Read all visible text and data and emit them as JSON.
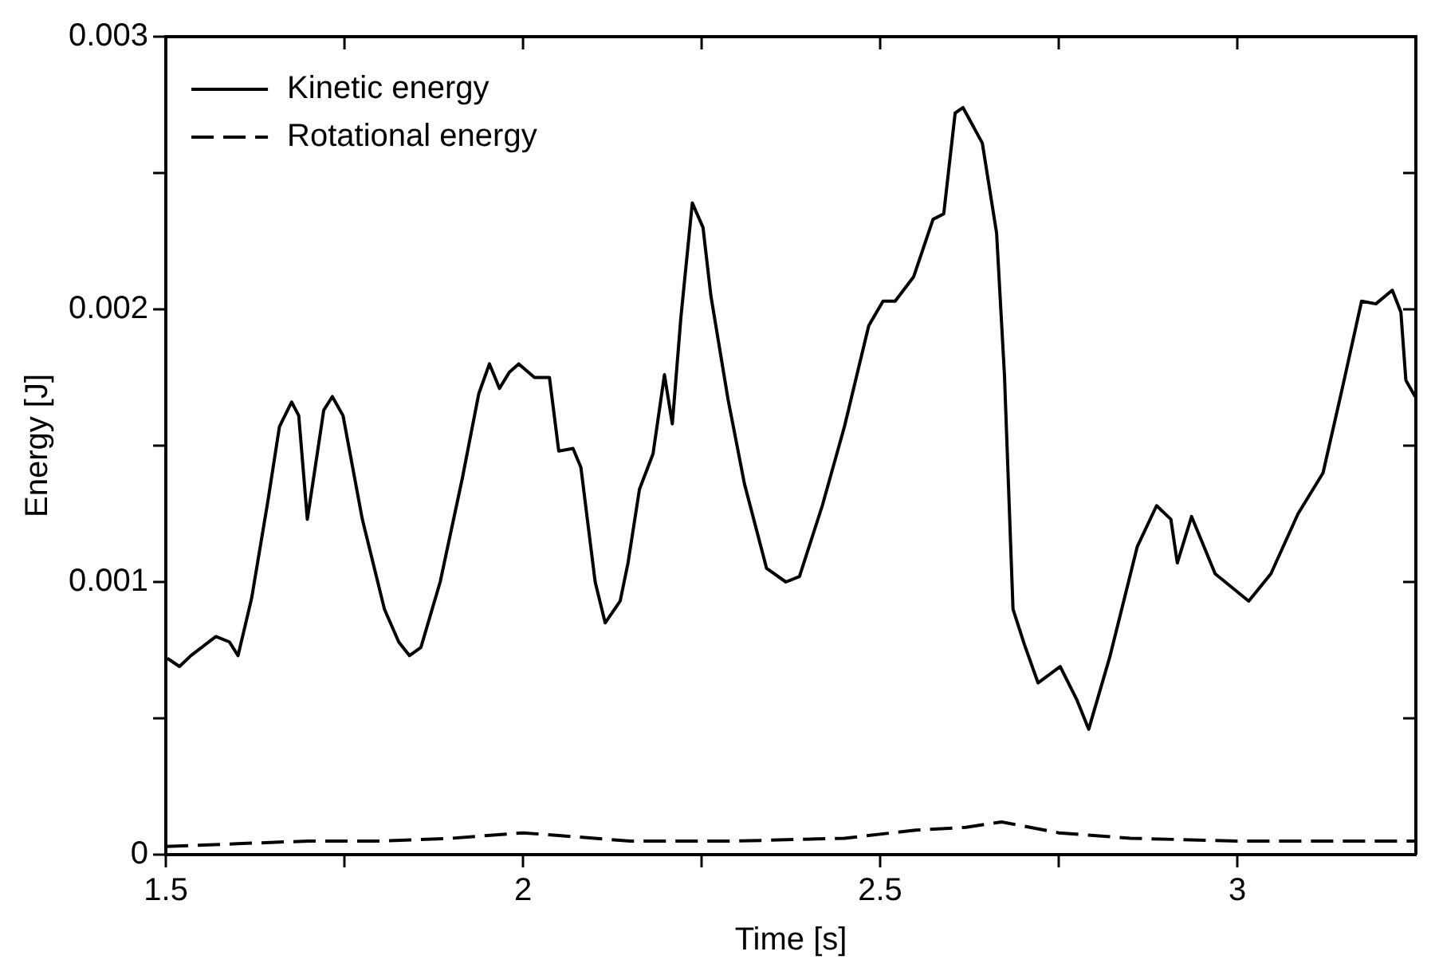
{
  "chart_data": {
    "type": "line",
    "xlabel": "Time [s]",
    "ylabel": "Energy [J]",
    "xlim": [
      1.5,
      3.25
    ],
    "xticks": [
      1.5,
      {
        "value": 1.75,
        "label": null
      },
      2,
      {
        "value": 2.25,
        "label": null
      },
      2.5,
      {
        "value": 2.75,
        "label": null
      },
      3
    ],
    "ylim": [
      0,
      0.003
    ],
    "yticks": [
      0,
      {
        "value": 0.0005,
        "label": null
      },
      0.001,
      {
        "value": 0.0015,
        "label": null
      },
      0.002,
      {
        "value": 0.0025,
        "label": null
      },
      0.003
    ],
    "grid": false,
    "legend": "top left",
    "marker": "none",
    "series": [
      {
        "name": "Kinetic energy",
        "color": "#000000",
        "line_style": "solid",
        "x": [
          1.502,
          1.519,
          1.535,
          1.57,
          1.589,
          1.601,
          1.62,
          1.643,
          1.659,
          1.676,
          1.686,
          1.698,
          1.709,
          1.721,
          1.733,
          1.748,
          1.775,
          1.806,
          1.826,
          1.841,
          1.857,
          1.884,
          1.915,
          1.938,
          1.953,
          1.967,
          1.981,
          1.994,
          2.016,
          2.037,
          2.05,
          2.07,
          2.081,
          2.101,
          2.115,
          2.136,
          2.147,
          2.163,
          2.182,
          2.198,
          2.209,
          2.221,
          2.237,
          2.252,
          2.263,
          2.287,
          2.31,
          2.341,
          2.368,
          2.387,
          2.419,
          2.45,
          2.484,
          2.504,
          2.521,
          2.547,
          2.574,
          2.589,
          2.605,
          2.616,
          2.643,
          2.663,
          2.674,
          2.686,
          2.702,
          2.721,
          2.752,
          2.775,
          2.792,
          2.822,
          2.86,
          2.887,
          2.907,
          2.916,
          2.936,
          2.969,
          3.016,
          3.047,
          3.085,
          3.12,
          3.147,
          3.174,
          3.194,
          3.217,
          3.229,
          3.236,
          3.249
        ],
        "values": [
          0.00072,
          0.00069,
          0.00073,
          0.0008,
          0.00078,
          0.00073,
          0.00094,
          0.0013,
          0.00157,
          0.00166,
          0.00161,
          0.00123,
          0.00142,
          0.00163,
          0.00168,
          0.00161,
          0.00123,
          0.0009,
          0.00078,
          0.00073,
          0.00076,
          0.001,
          0.00138,
          0.00169,
          0.0018,
          0.00171,
          0.00177,
          0.0018,
          0.00175,
          0.00175,
          0.00148,
          0.00149,
          0.00142,
          0.001,
          0.00085,
          0.00093,
          0.00107,
          0.00134,
          0.00147,
          0.00176,
          0.00158,
          0.00197,
          0.00239,
          0.0023,
          0.00205,
          0.00167,
          0.00136,
          0.00105,
          0.001,
          0.00102,
          0.00128,
          0.00157,
          0.00194,
          0.00203,
          0.00203,
          0.00212,
          0.00233,
          0.00235,
          0.00272,
          0.00274,
          0.00261,
          0.00228,
          0.00176,
          0.0009,
          0.00077,
          0.00063,
          0.00069,
          0.00057,
          0.00046,
          0.00073,
          0.00113,
          0.00128,
          0.00123,
          0.00107,
          0.00124,
          0.00103,
          0.00093,
          0.00103,
          0.00125,
          0.0014,
          0.00171,
          0.00203,
          0.00202,
          0.00207,
          0.00199,
          0.00174,
          0.00168
        ]
      },
      {
        "name": "Rotational energy",
        "color": "#000000",
        "line_style": "dashed",
        "x": [
          1.5,
          1.6,
          1.7,
          1.8,
          1.9,
          2.0,
          2.05,
          2.15,
          2.3,
          2.45,
          2.55,
          2.62,
          2.67,
          2.75,
          2.85,
          3.0,
          3.1,
          3.25
        ],
        "values": [
          3e-05,
          4e-05,
          5e-05,
          5e-05,
          6e-05,
          8e-05,
          7e-05,
          5e-05,
          5e-05,
          6e-05,
          9e-05,
          0.0001,
          0.00012,
          8e-05,
          6e-05,
          5e-05,
          5e-05,
          5e-05
        ]
      }
    ]
  }
}
